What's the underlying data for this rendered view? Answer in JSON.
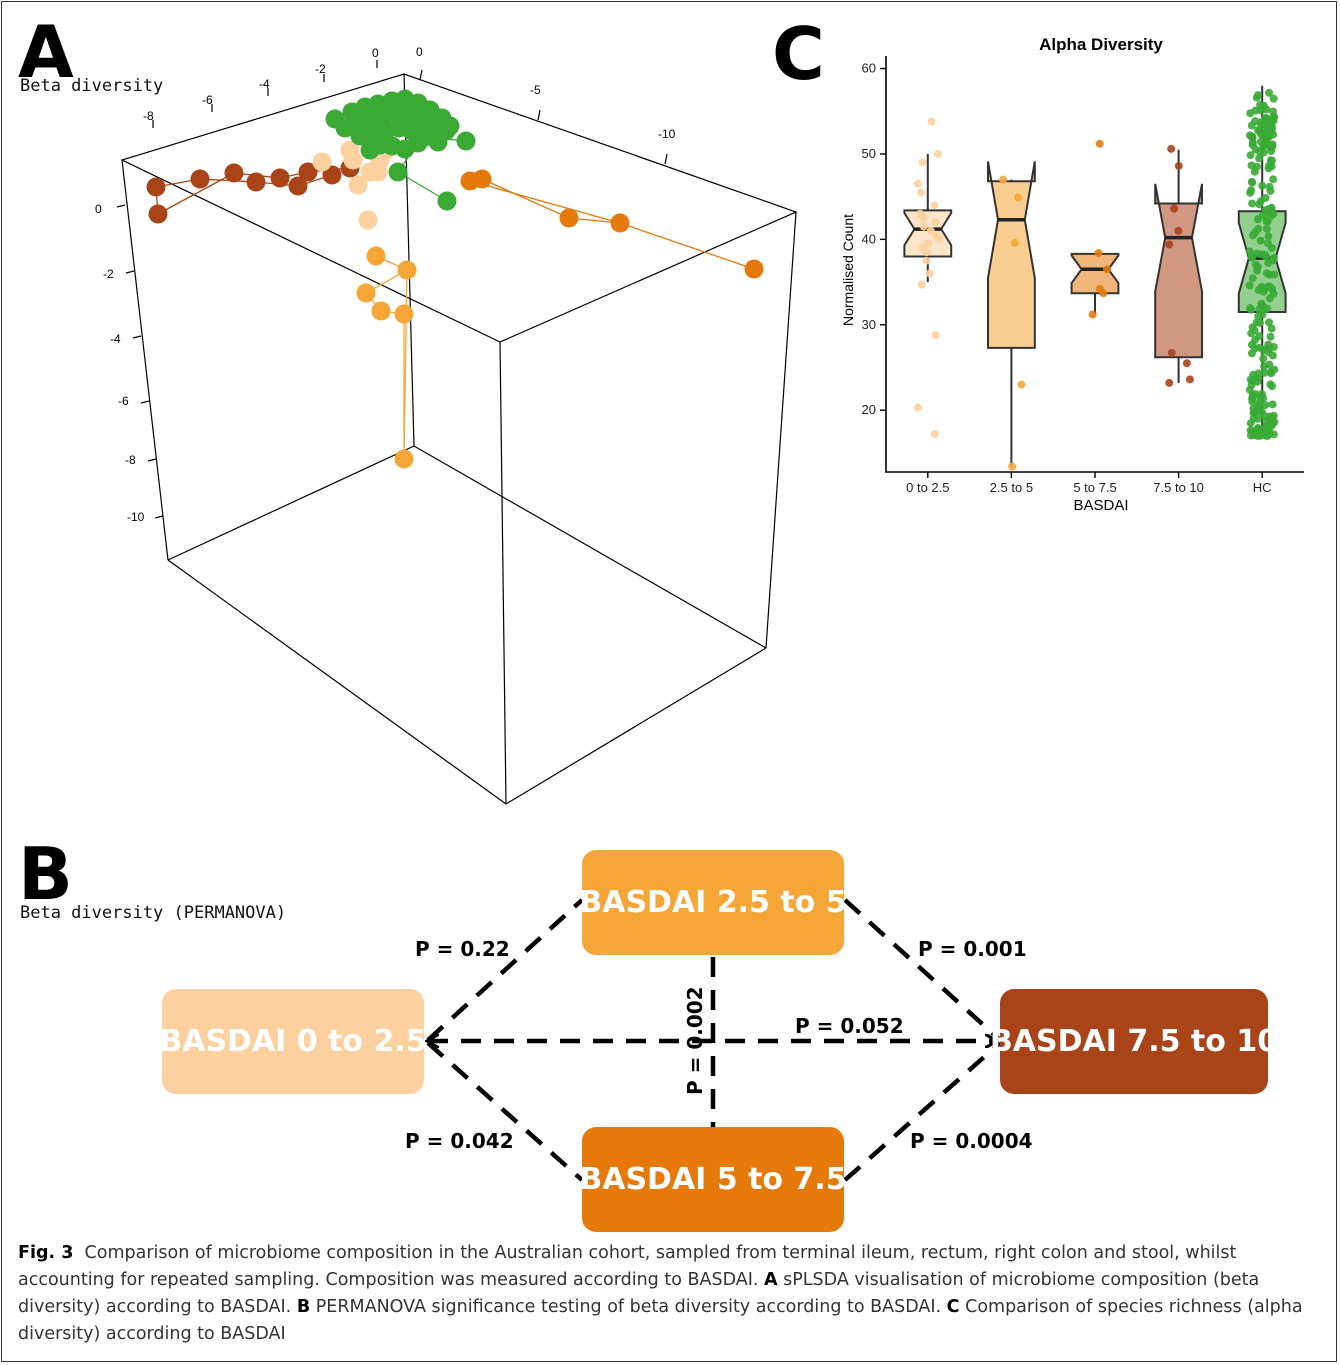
{
  "panelA": {
    "letter": "A",
    "subtitle": "Beta diversity",
    "top_axis_ticks": [
      "-8",
      "-6",
      "-4",
      "-2",
      "0"
    ],
    "top_axis_ticks_right": [
      "0",
      "-5",
      "-10"
    ],
    "left_axis_ticks": [
      "0",
      "-2",
      "-4",
      "-6",
      "-8",
      "-10"
    ]
  },
  "panelB": {
    "letter": "B",
    "subtitle": "Beta diversity (PERMANOVA)",
    "nodes": {
      "n0": "BASDAI 0 to 2.5",
      "n25": "BASDAI 2.5 to 5",
      "n5": "BASDAI 5 to 7.5",
      "n75": "BASDAI 7.5 to 10"
    },
    "pvalues": {
      "n0_n25": "P = 0.22",
      "n25_n75": "P = 0.001",
      "n0_n75": "P = 0.052",
      "n25_n5": "P = 0.002",
      "n0_n5": "P = 0.042",
      "n5_n75": "P = 0.0004"
    },
    "colors": {
      "n0": "#fcd09f",
      "n25": "#f6a537",
      "n5": "#e57a0b",
      "n75": "#a94419"
    }
  },
  "panelC": {
    "letter": "C"
  },
  "chart_data": {
    "type": "box",
    "title": "Alpha Diversity",
    "xlabel": "BASDAI",
    "ylabel": "Normalised Count",
    "ylim": [
      13,
      61
    ],
    "yticks": [
      20,
      30,
      40,
      50,
      60
    ],
    "categories": [
      "0 to 2.5",
      "2.5 to 5",
      "5 to 7.5",
      "7.5 to 10",
      "HC"
    ],
    "colors": [
      "#fcd09f",
      "#f6a537",
      "#e57a0b",
      "#a94419",
      "#3aaa35"
    ],
    "boxes": [
      {
        "q1": 38.0,
        "median": 41.2,
        "q3": 43.4,
        "whisker_low": 35.0,
        "whisker_high": 50.0,
        "points": [
          53.8,
          50.0,
          49.0,
          46.5,
          45.5,
          44.0,
          43.0,
          42.5,
          42.0,
          41.5,
          41.0,
          40.5,
          40.0,
          39.5,
          39.0,
          38.5,
          37.5,
          36.0,
          34.7,
          28.8,
          20.3,
          17.2
        ]
      },
      {
        "q1": 27.3,
        "median": 42.3,
        "q3": 46.8,
        "whisker_low": 13.4,
        "whisker_high": 47.0,
        "points": [
          47.0,
          44.9,
          39.6,
          23.0,
          13.4
        ]
      },
      {
        "q1": 33.7,
        "median": 36.5,
        "q3": 38.3,
        "whisker_low": 31.2,
        "whisker_high": 38.4,
        "points": [
          51.2,
          38.4,
          36.5,
          34.2,
          33.7,
          31.2
        ]
      },
      {
        "q1": 26.2,
        "median": 40.2,
        "q3": 44.2,
        "whisker_low": 23.2,
        "whisker_high": 50.5,
        "points": [
          50.6,
          48.6,
          43.6,
          41.0,
          39.4,
          26.7,
          25.5,
          23.6,
          23.2
        ]
      },
      {
        "q1": 31.5,
        "median": 37.8,
        "q3": 43.3,
        "whisker_low": 17.3,
        "whisker_high": 58.0,
        "points_range": [
          17.0,
          58.0
        ],
        "n_points": 230
      }
    ]
  },
  "caption": {
    "fig_label": "Fig. 3",
    "intro": "Comparison of microbiome composition in the Australian cohort, sampled from terminal ileum, rectum, right colon and stool, whilst accounting for repeated sampling. Composition was measured according to BASDAI.",
    "a_label": "A",
    "a_text": "sPLSDA visualisation of microbiome composition (beta diversity) according to BASDAI.",
    "b_label": "B",
    "b_text": "PERMANOVA significance testing of beta diversity according to BASDAI.",
    "c_label": "C",
    "c_text": "Comparison of species richness (alpha diversity) according to BASDAI"
  }
}
